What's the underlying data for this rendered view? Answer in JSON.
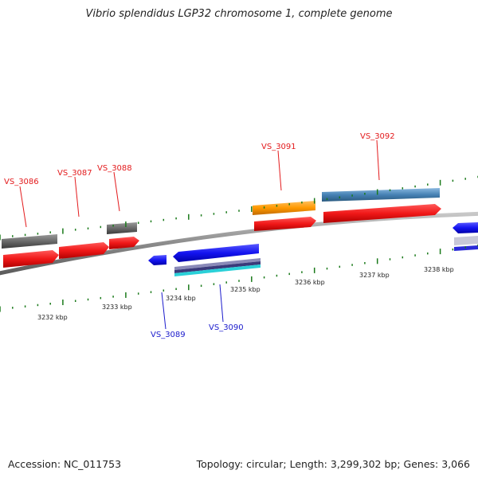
{
  "title": "Vibrio splendidus LGP32 chromosome 1, complete genome",
  "footer": {
    "accession": "Accession: NC_011753",
    "summary": "Topology: circular; Length: 3,299,302 bp; Genes: 3,066"
  },
  "tick_labels": [
    "3232 kbp",
    "3233 kbp",
    "3234 kbp",
    "3235 kbp",
    "3236 kbp",
    "3237 kbp",
    "3238 kbp"
  ],
  "gene_labels_forward": [
    "VS_3086",
    "VS_3087",
    "VS_3088",
    "VS_3091",
    "VS_3092"
  ],
  "gene_labels_reverse": [
    "VS_3089",
    "VS_3090"
  ],
  "colors": {
    "backbone": "#8a8a8a",
    "forward_cds": "#f01818",
    "reverse_cds": "#1414f0",
    "grey_feature": "#5a5a5a",
    "orange_feature": "#ff9900",
    "steel_feature": "#4682b4",
    "tick": "#1a7a1a",
    "forward_label": "#e31a1c",
    "reverse_label": "#1a1acc"
  }
}
